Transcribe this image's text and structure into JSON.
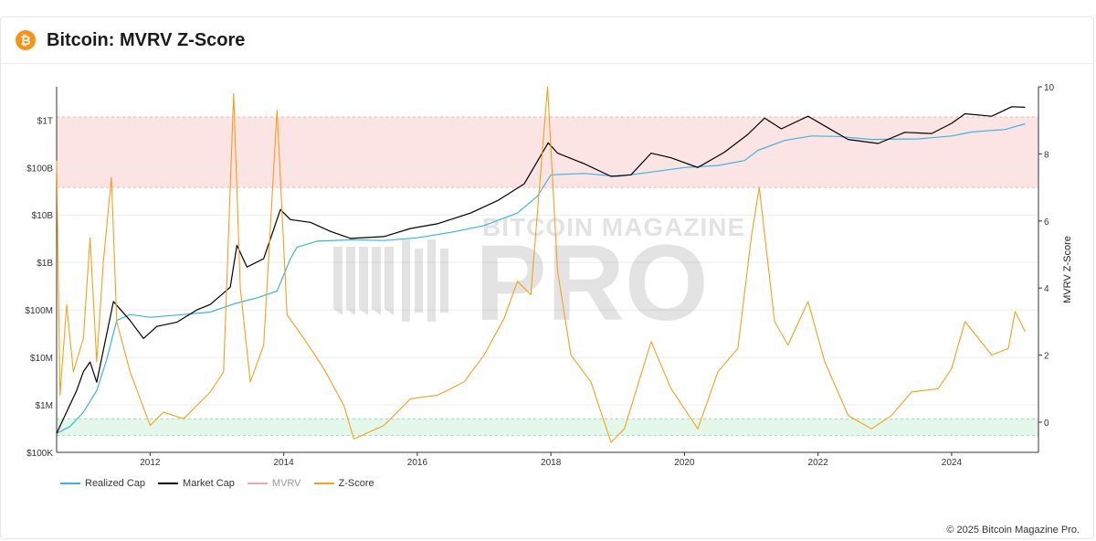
{
  "header": {
    "title": "Bitcoin: MVRV Z-Score",
    "logo_glyph": "₿"
  },
  "watermark": {
    "line1": "BITCOIN MAGAZINE",
    "line2": "PRO"
  },
  "copyright": "© 2025 Bitcoin Magazine Pro.",
  "colors": {
    "realized_cap": "#3bb5e0",
    "market_cap": "#000000",
    "mvrv": "#f4a6a6",
    "z_score": "#f7a01c",
    "red_zone": "#fde4e4",
    "green_zone": "#e3f7ea"
  },
  "chart_data": {
    "type": "line",
    "x_ticks": [
      "2012",
      "2014",
      "2016",
      "2018",
      "2020",
      "2022",
      "2024"
    ],
    "x_range": [
      2010.6,
      2025.3
    ],
    "left_axis": {
      "scale": "log",
      "tick_labels": [
        "$100K",
        "$1M",
        "$10M",
        "$100M",
        "$1B",
        "$10B",
        "$100B",
        "$1T"
      ],
      "tick_values": [
        100000.0,
        1000000.0,
        10000000.0,
        100000000.0,
        1000000000.0,
        10000000000.0,
        100000000000.0,
        1000000000000.0
      ],
      "range": [
        100000.0,
        5000000000000.0
      ]
    },
    "right_axis": {
      "label": "MVRV Z-Score",
      "tick_labels": [
        "0",
        "2",
        "4",
        "6",
        "8",
        "10"
      ],
      "tick_values": [
        0,
        2,
        4,
        6,
        8,
        10
      ],
      "range": [
        -0.9,
        10
      ]
    },
    "zones": [
      {
        "name": "red",
        "z_range": [
          7,
          9.1
        ]
      },
      {
        "name": "green",
        "z_range": [
          -0.4,
          0.1
        ]
      }
    ],
    "series": [
      {
        "name": "Realized Cap",
        "axis": "left",
        "points": [
          [
            2010.6,
            250000.0
          ],
          [
            2010.8,
            350000.0
          ],
          [
            2011.0,
            700000.0
          ],
          [
            2011.2,
            2000000.0
          ],
          [
            2011.35,
            9000000.0
          ],
          [
            2011.5,
            60000000.0
          ],
          [
            2011.7,
            80000000.0
          ],
          [
            2012.0,
            70000000.0
          ],
          [
            2012.5,
            80000000.0
          ],
          [
            2012.9,
            90000000.0
          ],
          [
            2013.3,
            140000000.0
          ],
          [
            2013.6,
            180000000.0
          ],
          [
            2013.9,
            250000000.0
          ],
          [
            2014.1,
            1200000000.0
          ],
          [
            2014.2,
            2100000000.0
          ],
          [
            2014.5,
            2800000000.0
          ],
          [
            2015.0,
            3000000000.0
          ],
          [
            2015.5,
            2900000000.0
          ],
          [
            2016.0,
            3300000000.0
          ],
          [
            2016.5,
            4300000000.0
          ],
          [
            2017.0,
            6000000000.0
          ],
          [
            2017.5,
            11000000000.0
          ],
          [
            2017.8,
            25000000000.0
          ],
          [
            2018.0,
            70000000000.0
          ],
          [
            2018.5,
            75000000000.0
          ],
          [
            2019.0,
            65000000000.0
          ],
          [
            2019.5,
            80000000000.0
          ],
          [
            2020.0,
            100000000000.0
          ],
          [
            2020.5,
            110000000000.0
          ],
          [
            2020.9,
            140000000000.0
          ],
          [
            2021.1,
            230000000000.0
          ],
          [
            2021.5,
            370000000000.0
          ],
          [
            2021.9,
            460000000000.0
          ],
          [
            2022.3,
            450000000000.0
          ],
          [
            2022.8,
            390000000000.0
          ],
          [
            2023.5,
            400000000000.0
          ],
          [
            2024.0,
            460000000000.0
          ],
          [
            2024.3,
            560000000000.0
          ],
          [
            2024.8,
            630000000000.0
          ],
          [
            2025.1,
            830000000000.0
          ]
        ]
      },
      {
        "name": "Market Cap",
        "axis": "left",
        "points": [
          [
            2010.6,
            250000.0
          ],
          [
            2010.8,
            1000000.0
          ],
          [
            2010.9,
            2000000.0
          ],
          [
            2011.0,
            5000000.0
          ],
          [
            2011.1,
            8000000.0
          ],
          [
            2011.2,
            3000000.0
          ],
          [
            2011.45,
            150000000.0
          ],
          [
            2011.7,
            60000000.0
          ],
          [
            2011.9,
            25000000.0
          ],
          [
            2012.1,
            45000000.0
          ],
          [
            2012.4,
            55000000.0
          ],
          [
            2012.7,
            100000000.0
          ],
          [
            2012.9,
            130000000.0
          ],
          [
            2013.2,
            300000000.0
          ],
          [
            2013.3,
            2300000000.0
          ],
          [
            2013.45,
            800000000.0
          ],
          [
            2013.7,
            1200000000.0
          ],
          [
            2013.95,
            13000000000.0
          ],
          [
            2014.1,
            8000000000.0
          ],
          [
            2014.4,
            7000000000.0
          ],
          [
            2014.7,
            4500000000.0
          ],
          [
            2015.0,
            3200000000.0
          ],
          [
            2015.5,
            3500000000.0
          ],
          [
            2015.9,
            5200000000.0
          ],
          [
            2016.3,
            6500000000.0
          ],
          [
            2016.8,
            11000000000.0
          ],
          [
            2017.2,
            20000000000.0
          ],
          [
            2017.6,
            45000000000.0
          ],
          [
            2017.96,
            330000000000.0
          ],
          [
            2018.1,
            200000000000.0
          ],
          [
            2018.5,
            120000000000.0
          ],
          [
            2018.9,
            65000000000.0
          ],
          [
            2019.2,
            70000000000.0
          ],
          [
            2019.5,
            200000000000.0
          ],
          [
            2019.8,
            160000000000.0
          ],
          [
            2020.2,
            100000000000.0
          ],
          [
            2020.6,
            210000000000.0
          ],
          [
            2020.95,
            500000000000.0
          ],
          [
            2021.2,
            1100000000000.0
          ],
          [
            2021.45,
            650000000000.0
          ],
          [
            2021.85,
            1200000000000.0
          ],
          [
            2022.1,
            750000000000.0
          ],
          [
            2022.45,
            390000000000.0
          ],
          [
            2022.9,
            320000000000.0
          ],
          [
            2023.3,
            550000000000.0
          ],
          [
            2023.7,
            520000000000.0
          ],
          [
            2024.0,
            850000000000.0
          ],
          [
            2024.2,
            1350000000000.0
          ],
          [
            2024.6,
            1200000000000.0
          ],
          [
            2024.9,
            1900000000000.0
          ],
          [
            2025.1,
            1850000000000.0
          ]
        ]
      },
      {
        "name": "MVRV",
        "axis": "none",
        "points": []
      },
      {
        "name": "Z-Score",
        "axis": "right",
        "points": [
          [
            2010.6,
            7.8
          ],
          [
            2010.65,
            0.8
          ],
          [
            2010.75,
            3.5
          ],
          [
            2010.85,
            1.5
          ],
          [
            2011.0,
            2.5
          ],
          [
            2011.1,
            5.5
          ],
          [
            2011.2,
            1.8
          ],
          [
            2011.3,
            4.8
          ],
          [
            2011.42,
            7.3
          ],
          [
            2011.5,
            3.0
          ],
          [
            2011.7,
            1.5
          ],
          [
            2011.85,
            0.7
          ],
          [
            2012.0,
            -0.1
          ],
          [
            2012.2,
            0.3
          ],
          [
            2012.5,
            0.1
          ],
          [
            2012.7,
            0.5
          ],
          [
            2012.9,
            0.9
          ],
          [
            2013.1,
            1.5
          ],
          [
            2013.25,
            9.8
          ],
          [
            2013.35,
            4.0
          ],
          [
            2013.5,
            1.2
          ],
          [
            2013.7,
            2.3
          ],
          [
            2013.9,
            9.3
          ],
          [
            2014.05,
            3.2
          ],
          [
            2014.3,
            2.5
          ],
          [
            2014.6,
            1.6
          ],
          [
            2014.9,
            0.5
          ],
          [
            2015.05,
            -0.5
          ],
          [
            2015.5,
            -0.1
          ],
          [
            2015.9,
            0.7
          ],
          [
            2016.3,
            0.8
          ],
          [
            2016.7,
            1.2
          ],
          [
            2017.0,
            2.0
          ],
          [
            2017.3,
            3.1
          ],
          [
            2017.5,
            4.2
          ],
          [
            2017.7,
            3.8
          ],
          [
            2017.95,
            10.0
          ],
          [
            2018.1,
            4.5
          ],
          [
            2018.3,
            2.0
          ],
          [
            2018.6,
            1.2
          ],
          [
            2018.9,
            -0.6
          ],
          [
            2019.1,
            -0.2
          ],
          [
            2019.5,
            2.4
          ],
          [
            2019.8,
            1.0
          ],
          [
            2020.2,
            -0.2
          ],
          [
            2020.5,
            1.5
          ],
          [
            2020.8,
            2.2
          ],
          [
            2021.0,
            5.5
          ],
          [
            2021.12,
            7.0
          ],
          [
            2021.35,
            3.0
          ],
          [
            2021.55,
            2.3
          ],
          [
            2021.85,
            3.6
          ],
          [
            2022.1,
            1.8
          ],
          [
            2022.45,
            0.2
          ],
          [
            2022.8,
            -0.2
          ],
          [
            2023.1,
            0.2
          ],
          [
            2023.4,
            0.9
          ],
          [
            2023.8,
            1.0
          ],
          [
            2024.0,
            1.6
          ],
          [
            2024.2,
            3.0
          ],
          [
            2024.6,
            2.0
          ],
          [
            2024.85,
            2.2
          ],
          [
            2024.95,
            3.3
          ],
          [
            2025.1,
            2.7
          ]
        ]
      }
    ]
  },
  "legend": {
    "items": [
      {
        "label": "Realized Cap",
        "color_key": "realized_cap",
        "muted": false
      },
      {
        "label": "Market Cap",
        "color_key": "market_cap",
        "muted": false
      },
      {
        "label": "MVRV",
        "color_key": "mvrv",
        "muted": true
      },
      {
        "label": "Z-Score",
        "color_key": "z_score",
        "muted": false
      }
    ]
  }
}
